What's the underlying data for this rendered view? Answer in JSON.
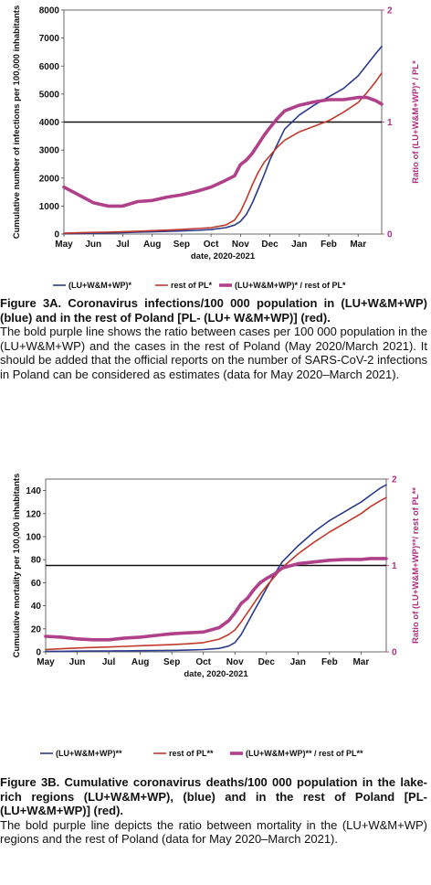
{
  "chart_data": [
    {
      "type": "line",
      "xlabel": "date, 2020-2021",
      "ylabel": "Cumulative number of infections per 100,000 inhabitants",
      "y2label": "Ratio of (LU+W&M+WP)* / PL*",
      "x_ticks": [
        "May",
        "Jun",
        "Jul",
        "Aug",
        "Sep",
        "Oct",
        "Nov",
        "Dec",
        "Jan",
        "Feb",
        "Mar"
      ],
      "ylim": [
        0,
        8000
      ],
      "y_ticks": [
        0,
        1000,
        2000,
        3000,
        4000,
        5000,
        6000,
        7000,
        8000
      ],
      "y2lim": [
        0,
        2
      ],
      "y2_ticks": [
        0,
        1,
        2
      ],
      "reference_line": {
        "axis": "y2",
        "value": 1
      },
      "x": [
        0,
        0.5,
        1,
        1.5,
        2,
        2.5,
        3,
        3.5,
        4,
        4.5,
        5,
        5.5,
        5.8,
        6,
        6.2,
        6.4,
        6.6,
        6.8,
        7,
        7.25,
        7.5,
        8,
        8.5,
        9,
        9.5,
        10,
        10.3,
        10.6,
        10.8
      ],
      "series": [
        {
          "name": "(LU+W&M+WP)*",
          "color": "#2b3a8c",
          "axis": "y",
          "values": [
            10,
            20,
            30,
            40,
            50,
            65,
            80,
            95,
            110,
            130,
            160,
            230,
            320,
            450,
            700,
            1100,
            1600,
            2100,
            2650,
            3200,
            3750,
            4250,
            4600,
            4900,
            5200,
            5650,
            6050,
            6450,
            6700
          ]
        },
        {
          "name": "rest of PL*",
          "color": "#c0392b",
          "axis": "y",
          "values": [
            30,
            45,
            60,
            70,
            85,
            100,
            120,
            140,
            165,
            195,
            230,
            320,
            500,
            800,
            1250,
            1750,
            2200,
            2550,
            2800,
            3100,
            3350,
            3650,
            3850,
            4050,
            4350,
            4700,
            5050,
            5450,
            5750
          ]
        },
        {
          "name": "(LU+W&M+WP)* / rest of PL*",
          "color": "#b0408a",
          "axis": "y2",
          "values": [
            0.42,
            0.35,
            0.28,
            0.25,
            0.25,
            0.29,
            0.3,
            0.33,
            0.35,
            0.38,
            0.42,
            0.48,
            0.52,
            0.62,
            0.66,
            0.72,
            0.8,
            0.88,
            0.95,
            1.03,
            1.1,
            1.15,
            1.18,
            1.2,
            1.2,
            1.22,
            1.22,
            1.19,
            1.16
          ]
        }
      ]
    },
    {
      "type": "line",
      "xlabel": "date, 2020-2021",
      "ylabel": "Cumulative mortality per 100,000 inhabitants",
      "y2label": "Ratio of (LU+W&M+WP)**/ rest of PL**",
      "x_ticks": [
        "May",
        "Jun",
        "Jul",
        "Aug",
        "Sep",
        "Oct",
        "Nov",
        "Dec",
        "Jan",
        "Feb",
        "Mar"
      ],
      "ylim": [
        0,
        150
      ],
      "y_ticks": [
        0,
        20,
        40,
        60,
        80,
        100,
        120,
        140
      ],
      "y2lim": [
        0,
        2
      ],
      "y2_ticks": [
        0,
        1,
        2
      ],
      "reference_line": {
        "axis": "y2",
        "value": 1
      },
      "x": [
        0,
        0.5,
        1,
        1.5,
        2,
        2.5,
        3,
        3.5,
        4,
        4.5,
        5,
        5.5,
        5.8,
        6,
        6.2,
        6.4,
        6.6,
        6.8,
        7,
        7.25,
        7.5,
        8,
        8.5,
        9,
        9.5,
        10,
        10.3,
        10.6,
        10.8
      ],
      "series": [
        {
          "name": "(LU+W&M+WP)**",
          "color": "#2b3a8c",
          "axis": "y",
          "values": [
            0.5,
            0.5,
            0.6,
            0.7,
            0.8,
            0.9,
            1,
            1.1,
            1.3,
            1.5,
            2,
            3,
            5,
            8,
            15,
            25,
            35,
            45,
            55,
            67,
            78,
            92,
            104,
            114,
            122,
            130,
            136,
            142,
            145
          ]
        },
        {
          "name": "rest of PL**",
          "color": "#c0392b",
          "axis": "y",
          "values": [
            2,
            2.7,
            3.3,
            3.8,
            4.2,
            4.8,
            5.3,
            5.8,
            6.3,
            7,
            8,
            11,
            15,
            19,
            26,
            34,
            42,
            50,
            57,
            65,
            73,
            85,
            95,
            104,
            112,
            120,
            126,
            131,
            134
          ]
        },
        {
          "name": "(LU+W&M+WP)** / rest of PL**",
          "color": "#b0408a",
          "axis": "y2",
          "values": [
            0.18,
            0.17,
            0.15,
            0.14,
            0.14,
            0.16,
            0.17,
            0.19,
            0.21,
            0.22,
            0.23,
            0.28,
            0.36,
            0.45,
            0.56,
            0.62,
            0.72,
            0.8,
            0.85,
            0.9,
            0.97,
            1.02,
            1.04,
            1.06,
            1.07,
            1.07,
            1.08,
            1.08,
            1.08
          ]
        }
      ]
    }
  ],
  "captions": {
    "a_title": "Figure 3A. Coronavirus infections/100 000 population in (LU+W&M+WP) (blue) and in the rest of Poland [PL- (LU+ W&M+WP)] (red).",
    "a_body": "The bold purple line shows the ratio between cases per 100 000 population in the (LU+W&M+WP) and the cases in the rest of Poland (May 2020/March 2021). It should be added that the official reports on the number of SARS-CoV-2 infections in Poland can be considered as estimates (data for May 2020–March 2021).",
    "b_title": "Figure 3B. Cumulative coronavirus deaths/100 000 population in the lake-rich regions (LU+W&M+WP), (blue) and in the rest of Poland [PL- (LU+W&M+WP)] (red).",
    "b_body": "The bold purple line depicts the ratio between mortality in the (LU+W&M+WP) regions and the rest of Poland (data for May 2020–March 2021)."
  }
}
